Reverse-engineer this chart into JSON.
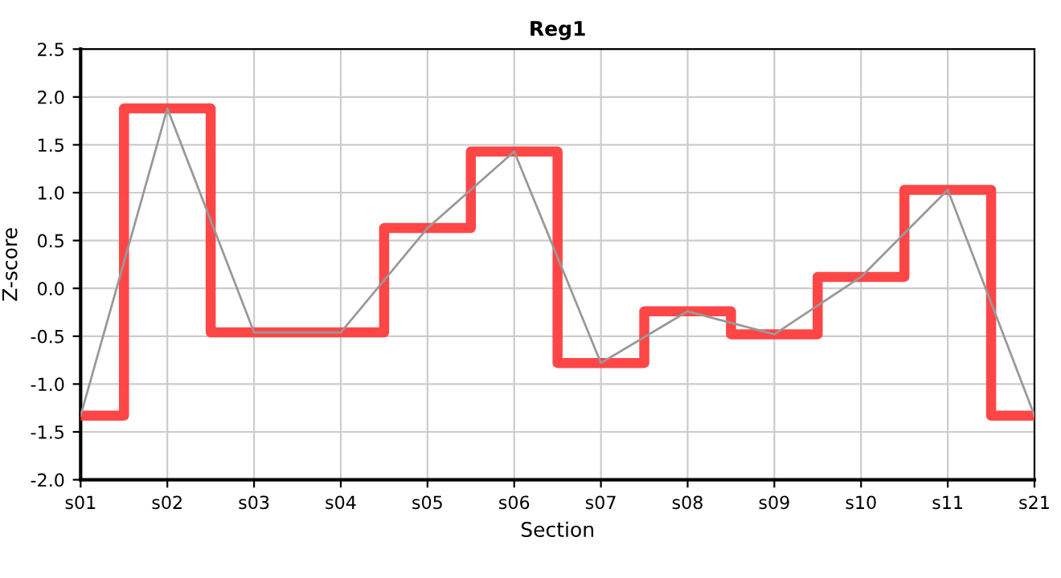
{
  "chart_data": {
    "type": "line",
    "title": "Reg1",
    "xlabel": "Section",
    "ylabel": "Z-score",
    "categories": [
      "s01",
      "s02",
      "s03",
      "s04",
      "s05",
      "s06",
      "s07",
      "s08",
      "s09",
      "s10",
      "s11",
      "s21"
    ],
    "series": [
      {
        "type": "step",
        "color": "#ff3c3c",
        "values": [
          -1.33,
          1.88,
          -0.46,
          -0.46,
          0.63,
          1.43,
          -0.78,
          -0.24,
          -0.48,
          0.12,
          1.03,
          -1.33
        ]
      },
      {
        "color": "#999999",
        "values": [
          -1.33,
          1.88,
          -0.46,
          -0.46,
          0.63,
          1.43,
          -0.78,
          -0.24,
          -0.48,
          0.12,
          1.03,
          -1.33
        ]
      }
    ],
    "ylim": [
      -2.0,
      2.5
    ],
    "yticks": [
      {
        "value": -2.0,
        "label": "-2.0"
      },
      {
        "value": -1.5,
        "label": "-1.5"
      },
      {
        "value": -1.0,
        "label": "-1.0"
      },
      {
        "value": -0.5,
        "label": "-0.5"
      },
      {
        "value": 0.0,
        "label": "0.0"
      },
      {
        "value": 0.5,
        "label": "0.5"
      },
      {
        "value": 1.0,
        "label": "1.0"
      },
      {
        "value": 1.5,
        "label": "1.5"
      },
      {
        "value": 2.0,
        "label": "2.0"
      },
      {
        "value": 2.5,
        "label": "2.5"
      }
    ],
    "grid": true,
    "marker": "none"
  }
}
